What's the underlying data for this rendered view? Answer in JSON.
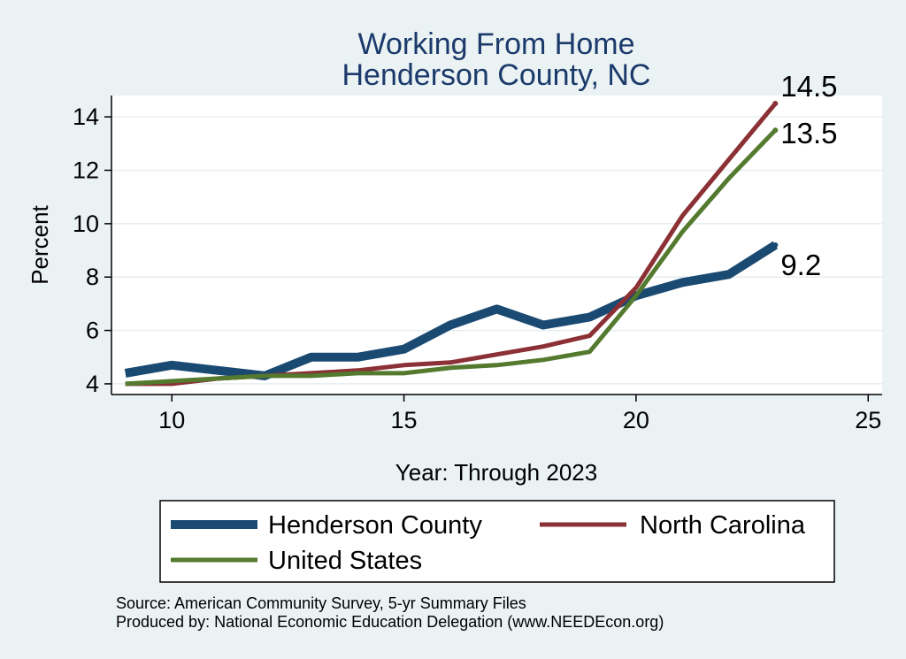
{
  "chart_data": {
    "type": "line",
    "title": [
      "Working From Home",
      "Henderson County, NC"
    ],
    "xlabel": "Year: Through 2023",
    "ylabel": "Percent",
    "xlim": [
      8.7,
      25.3
    ],
    "ylim": [
      3.6,
      14.8
    ],
    "xticks": [
      10,
      15,
      20,
      25
    ],
    "yticks": [
      4,
      6,
      8,
      10,
      12,
      14
    ],
    "grid": "horizontal",
    "legend_position": "bottom",
    "series": [
      {
        "name": "Henderson County",
        "color": "#1a4a72",
        "width": 10,
        "x": [
          9,
          10,
          11,
          12,
          13,
          14,
          15,
          16,
          17,
          18,
          19,
          20,
          21,
          22,
          23
        ],
        "y": [
          4.4,
          4.7,
          4.5,
          4.3,
          5.0,
          5.0,
          5.3,
          6.2,
          6.8,
          6.2,
          6.5,
          7.3,
          7.8,
          8.1,
          9.2
        ],
        "end_label": "9.2"
      },
      {
        "name": "North Carolina",
        "color": "#8b3034",
        "width": 5,
        "x": [
          9,
          10,
          11,
          12,
          13,
          14,
          15,
          16,
          17,
          18,
          19,
          20,
          21,
          22,
          23
        ],
        "y": [
          4.0,
          4.0,
          4.2,
          4.3,
          4.4,
          4.5,
          4.7,
          4.8,
          5.1,
          5.4,
          5.8,
          7.6,
          10.3,
          12.4,
          14.5
        ],
        "end_label": "14.5"
      },
      {
        "name": "United States",
        "color": "#537a2e",
        "width": 5,
        "x": [
          9,
          10,
          11,
          12,
          13,
          14,
          15,
          16,
          17,
          18,
          19,
          20,
          21,
          22,
          23
        ],
        "y": [
          4.0,
          4.1,
          4.2,
          4.3,
          4.3,
          4.4,
          4.4,
          4.6,
          4.7,
          4.9,
          5.2,
          7.3,
          9.7,
          11.7,
          13.5
        ],
        "end_label": "13.5"
      }
    ],
    "notes": [
      "Source: American Community Survey, 5-yr Summary Files",
      "Produced by: National Economic Education Delegation (www.NEEDEcon.org)"
    ]
  }
}
